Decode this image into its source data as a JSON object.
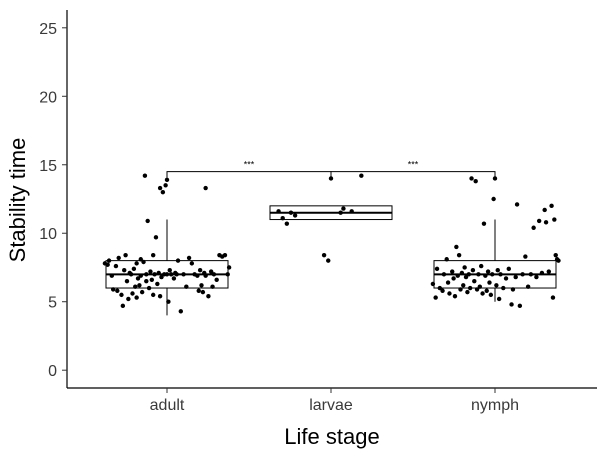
{
  "chart_data": {
    "type": "boxplot",
    "xlabel": "Life stage",
    "ylabel": "Stability time",
    "categories": [
      "adult",
      "larvae",
      "nymph"
    ],
    "ylim": [
      -1.3,
      26.3
    ],
    "yticks": [
      0,
      5,
      10,
      15,
      20,
      25
    ],
    "grid": false,
    "legend": "none",
    "boxes": [
      {
        "category": "adult",
        "q1": 6.0,
        "median": 7.0,
        "q3": 8.0,
        "whisker_low": 4.0,
        "whisker_high": 11.0
      },
      {
        "category": "larvae",
        "q1": 11.0,
        "median": 11.5,
        "q3": 12.0,
        "whisker_low": 11.0,
        "whisker_high": 12.0
      },
      {
        "category": "nymph",
        "q1": 6.0,
        "median": 7.0,
        "q3": 8.0,
        "whisker_low": 5.0,
        "whisker_high": 11.0
      }
    ],
    "points": {
      "adult": [
        [
          -0.45,
          7.8
        ],
        [
          -0.43,
          7.7
        ],
        [
          -0.42,
          8.0
        ],
        [
          -0.4,
          6.9
        ],
        [
          -0.39,
          5.9
        ],
        [
          -0.37,
          7.6
        ],
        [
          -0.36,
          5.8
        ],
        [
          -0.35,
          8.2
        ],
        [
          -0.33,
          5.5
        ],
        [
          -0.32,
          4.7
        ],
        [
          -0.31,
          7.3
        ],
        [
          -0.3,
          8.4
        ],
        [
          -0.29,
          6.5
        ],
        [
          -0.28,
          5.2
        ],
        [
          -0.27,
          7.1
        ],
        [
          -0.26,
          7.0
        ],
        [
          -0.25,
          5.6
        ],
        [
          -0.24,
          7.4
        ],
        [
          -0.23,
          6.1
        ],
        [
          -0.22,
          7.8
        ],
        [
          -0.22,
          5.3
        ],
        [
          -0.21,
          6.7
        ],
        [
          -0.2,
          6.2
        ],
        [
          -0.19,
          8.1
        ],
        [
          -0.19,
          6.9
        ],
        [
          -0.18,
          5.7
        ],
        [
          -0.17,
          7.9
        ],
        [
          -0.16,
          14.2
        ],
        [
          -0.15,
          6.5
        ],
        [
          -0.15,
          7.0
        ],
        [
          -0.14,
          10.9
        ],
        [
          -0.13,
          6.0
        ],
        [
          -0.12,
          7.2
        ],
        [
          -0.11,
          6.6
        ],
        [
          -0.1,
          8.4
        ],
        [
          -0.1,
          5.5
        ],
        [
          -0.09,
          7.0
        ],
        [
          -0.08,
          9.7
        ],
        [
          -0.07,
          6.3
        ],
        [
          -0.06,
          7.1
        ],
        [
          -0.05,
          5.4
        ],
        [
          -0.05,
          13.3
        ],
        [
          -0.04,
          6.8
        ],
        [
          -0.03,
          13.0
        ],
        [
          -0.02,
          7.0
        ],
        [
          -0.01,
          13.5
        ],
        [
          0.0,
          13.9
        ],
        [
          0.0,
          7.0
        ],
        [
          0.01,
          5.0
        ],
        [
          0.02,
          7.3
        ],
        [
          0.03,
          7.0
        ],
        [
          0.05,
          6.7
        ],
        [
          0.06,
          7.1
        ],
        [
          0.07,
          7.0
        ],
        [
          0.08,
          8.0
        ],
        [
          0.1,
          4.3
        ],
        [
          0.12,
          7.0
        ],
        [
          0.14,
          6.1
        ],
        [
          0.16,
          8.2
        ],
        [
          0.18,
          7.8
        ],
        [
          0.2,
          7.0
        ],
        [
          0.22,
          6.9
        ],
        [
          0.23,
          5.8
        ],
        [
          0.24,
          7.3
        ],
        [
          0.25,
          6.2
        ],
        [
          0.26,
          5.7
        ],
        [
          0.27,
          7.1
        ],
        [
          0.28,
          6.9
        ],
        [
          0.28,
          13.3
        ],
        [
          0.3,
          5.4
        ],
        [
          0.32,
          7.2
        ],
        [
          0.33,
          6.1
        ],
        [
          0.34,
          7.0
        ],
        [
          0.36,
          6.6
        ],
        [
          0.38,
          8.4
        ],
        [
          0.4,
          8.3
        ],
        [
          0.42,
          8.4
        ],
        [
          0.44,
          7.0
        ],
        [
          0.45,
          7.5
        ]
      ],
      "larvae": [
        [
          -0.38,
          11.6
        ],
        [
          -0.35,
          11.1
        ],
        [
          -0.32,
          10.7
        ],
        [
          -0.29,
          11.5
        ],
        [
          -0.26,
          11.3
        ],
        [
          -0.05,
          8.4
        ],
        [
          -0.02,
          8.0
        ],
        [
          0.0,
          14.0
        ],
        [
          0.07,
          11.5
        ],
        [
          0.09,
          11.8
        ],
        [
          0.15,
          11.6
        ],
        [
          0.22,
          14.2
        ]
      ],
      "nymph": [
        [
          -0.45,
          6.3
        ],
        [
          -0.43,
          5.3
        ],
        [
          -0.42,
          7.4
        ],
        [
          -0.4,
          6.0
        ],
        [
          -0.38,
          5.8
        ],
        [
          -0.37,
          7.0
        ],
        [
          -0.35,
          8.1
        ],
        [
          -0.34,
          6.4
        ],
        [
          -0.33,
          5.6
        ],
        [
          -0.31,
          7.2
        ],
        [
          -0.3,
          6.7
        ],
        [
          -0.29,
          5.4
        ],
        [
          -0.28,
          9.0
        ],
        [
          -0.27,
          6.9
        ],
        [
          -0.26,
          8.4
        ],
        [
          -0.25,
          5.9
        ],
        [
          -0.24,
          7.1
        ],
        [
          -0.23,
          6.2
        ],
        [
          -0.22,
          7.5
        ],
        [
          -0.21,
          6.8
        ],
        [
          -0.2,
          5.7
        ],
        [
          -0.19,
          7.0
        ],
        [
          -0.18,
          6.0
        ],
        [
          -0.17,
          14.0
        ],
        [
          -0.16,
          7.3
        ],
        [
          -0.15,
          6.5
        ],
        [
          -0.14,
          13.8
        ],
        [
          -0.13,
          5.9
        ],
        [
          -0.12,
          7.0
        ],
        [
          -0.11,
          6.1
        ],
        [
          -0.1,
          7.6
        ],
        [
          -0.09,
          5.6
        ],
        [
          -0.08,
          10.7
        ],
        [
          -0.07,
          6.9
        ],
        [
          -0.06,
          5.8
        ],
        [
          -0.05,
          7.2
        ],
        [
          -0.04,
          6.4
        ],
        [
          -0.03,
          5.5
        ],
        [
          -0.02,
          7.0
        ],
        [
          -0.01,
          12.5
        ],
        [
          0.0,
          14.0
        ],
        [
          0.01,
          6.2
        ],
        [
          0.02,
          7.3
        ],
        [
          0.03,
          5.2
        ],
        [
          0.04,
          7.0
        ],
        [
          0.06,
          6.0
        ],
        [
          0.08,
          6.7
        ],
        [
          0.1,
          7.4
        ],
        [
          0.12,
          4.8
        ],
        [
          0.13,
          5.9
        ],
        [
          0.15,
          6.8
        ],
        [
          0.16,
          12.1
        ],
        [
          0.18,
          4.7
        ],
        [
          0.2,
          7.0
        ],
        [
          0.22,
          8.3
        ],
        [
          0.24,
          6.1
        ],
        [
          0.26,
          7.0
        ],
        [
          0.28,
          10.4
        ],
        [
          0.3,
          6.8
        ],
        [
          0.32,
          10.9
        ],
        [
          0.34,
          7.1
        ],
        [
          0.36,
          11.7
        ],
        [
          0.37,
          10.8
        ],
        [
          0.39,
          7.2
        ],
        [
          0.41,
          12.0
        ],
        [
          0.42,
          5.3
        ],
        [
          0.43,
          11.0
        ],
        [
          0.44,
          8.4
        ],
        [
          0.45,
          8.1
        ],
        [
          0.46,
          8.0
        ]
      ]
    },
    "significance": [
      {
        "from": "adult",
        "to": "larvae",
        "y": 14.5,
        "label": "***"
      },
      {
        "from": "larvae",
        "to": "nymph",
        "y": 14.5,
        "label": "***"
      }
    ]
  }
}
